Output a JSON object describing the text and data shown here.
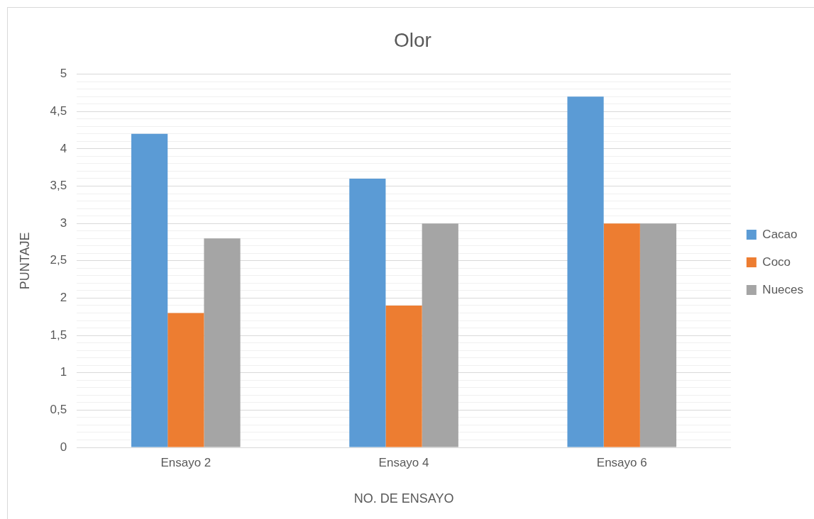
{
  "chart_data": {
    "type": "bar",
    "title": "Olor",
    "xlabel": "NO. DE ENSAYO",
    "ylabel": "PUNTAJE",
    "categories": [
      "Ensayo 2",
      "Ensayo 4",
      "Ensayo 6"
    ],
    "series": [
      {
        "name": "Cacao",
        "color": "#5b9bd5",
        "values": [
          4.2,
          3.6,
          4.7
        ]
      },
      {
        "name": "Coco",
        "color": "#ed7d31",
        "values": [
          1.8,
          1.9,
          3.0
        ]
      },
      {
        "name": "Nueces",
        "color": "#a5a5a5",
        "values": [
          2.8,
          3.0,
          3.0
        ]
      }
    ],
    "ylim": [
      0,
      5
    ],
    "yticks": [
      0,
      {
        "value": 0.1,
        "label": null
      },
      {
        "value": 0.2,
        "label": null
      },
      {
        "value": 0.3,
        "label": null
      },
      {
        "value": 0.4,
        "label": null
      },
      {
        "value": 0.5,
        "label": "0,5"
      },
      {
        "value": 0.6,
        "label": null
      },
      {
        "value": 0.7,
        "label": null
      },
      {
        "value": 0.8,
        "label": null
      },
      {
        "value": 0.9,
        "label": null
      },
      1,
      {
        "value": 1.1,
        "label": null
      },
      {
        "value": 1.2,
        "label": null
      },
      {
        "value": 1.3,
        "label": null
      },
      {
        "value": 1.4,
        "label": null
      },
      {
        "value": 1.5,
        "label": "1,5"
      },
      {
        "value": 1.6,
        "label": null
      },
      {
        "value": 1.7,
        "label": null
      },
      {
        "value": 1.8,
        "label": null
      },
      {
        "value": 1.9,
        "label": null
      },
      2,
      {
        "value": 2.1,
        "label": null
      },
      {
        "value": 2.2,
        "label": null
      },
      {
        "value": 2.3,
        "label": null
      },
      {
        "value": 2.4,
        "label": null
      },
      {
        "value": 2.5,
        "label": "2,5"
      },
      {
        "value": 2.6,
        "label": null
      },
      {
        "value": 2.7,
        "label": null
      },
      {
        "value": 2.8,
        "label": null
      },
      {
        "value": 2.9,
        "label": null
      },
      3,
      {
        "value": 3.1,
        "label": null
      },
      {
        "value": 3.2,
        "label": null
      },
      {
        "value": 3.3,
        "label": null
      },
      {
        "value": 3.4,
        "label": null
      },
      {
        "value": 3.5,
        "label": "3,5"
      },
      {
        "value": 3.6,
        "label": null
      },
      {
        "value": 3.7,
        "label": null
      },
      {
        "value": 3.8,
        "label": null
      },
      {
        "value": 3.9,
        "label": null
      },
      4,
      {
        "value": 4.1,
        "label": null
      },
      {
        "value": 4.2,
        "label": null
      },
      {
        "value": 4.3,
        "label": null
      },
      {
        "value": 4.4,
        "label": null
      },
      {
        "value": 4.5,
        "label": "4,5"
      },
      {
        "value": 4.6,
        "label": null
      },
      {
        "value": 4.7,
        "label": null
      },
      {
        "value": 4.8,
        "label": null
      },
      {
        "value": 4.9,
        "label": null
      },
      5
    ],
    "grid": "y",
    "legend": "right"
  }
}
